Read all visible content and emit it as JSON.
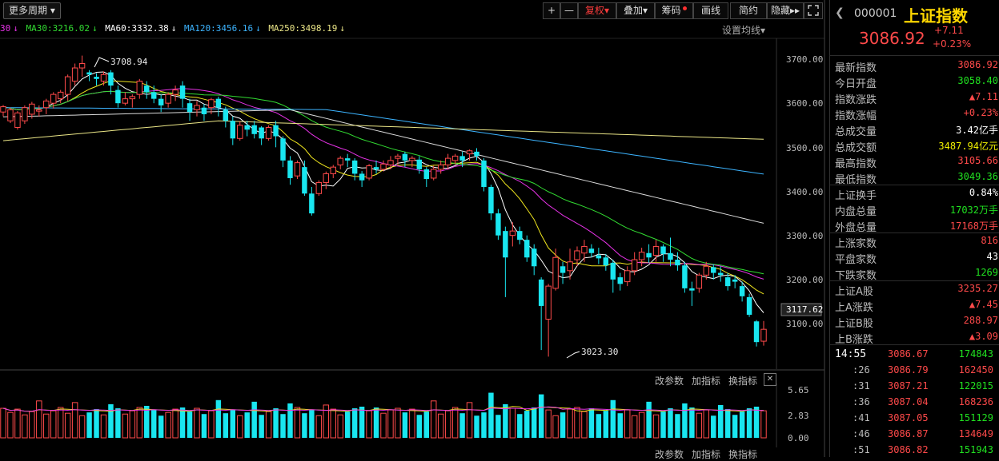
{
  "toolbar": {
    "more_period": "更多周期",
    "buttons": [
      "+",
      "—",
      "复权",
      "叠加",
      "筹码",
      "画线",
      "简约",
      "隐藏",
      "▸▸"
    ],
    "dropdown_glyph": "▾"
  },
  "ma_legend": {
    "prefix": "30",
    "ma30": "MA30:3216.02",
    "ma60": "MA60:3332.38",
    "ma120": "MA120:3456.16",
    "ma250": "MA250:3498.19",
    "arrow": "↓",
    "settings": "设置均线"
  },
  "price_axis": [
    "3700.00",
    "3600.00",
    "3500.00",
    "3400.00",
    "3300.00",
    "3200.00",
    "3100.00"
  ],
  "current_price_tag": "3117.62",
  "annotations": {
    "high": "3708.94",
    "low": "3023.30"
  },
  "volume_axis": [
    "5.65",
    "2.83",
    "0.00"
  ],
  "indicator_controls": {
    "change_params": "改参数",
    "add_indicator": "加指标",
    "switch_indicator": "换指标",
    "close": "✕"
  },
  "colors": {
    "up": "#ff4a4a",
    "down": "#19e6f0",
    "ma_white": "#ffffff",
    "ma_yellow": "#f0e61e",
    "ma_magenta": "#e632e6",
    "ma_green": "#32dc32",
    "ma_blue": "#3cb4ff",
    "ma_long": "#ebe687"
  },
  "chart_data": {
    "type": "candlestick",
    "ylim": [
      3010,
      3730
    ],
    "candles": [
      [
        3580,
        3592,
        3570,
        3596
      ],
      [
        3560,
        3585,
        3555,
        3590
      ],
      [
        3545,
        3578,
        3540,
        3582
      ],
      [
        3560,
        3590,
        3553,
        3595
      ],
      [
        3575,
        3598,
        3565,
        3603
      ],
      [
        3582,
        3585,
        3570,
        3595
      ],
      [
        3590,
        3605,
        3575,
        3610
      ],
      [
        3600,
        3620,
        3588,
        3625
      ],
      [
        3610,
        3625,
        3600,
        3630
      ],
      [
        3620,
        3660,
        3605,
        3665
      ],
      [
        3650,
        3680,
        3640,
        3690
      ],
      [
        3680,
        3690,
        3660,
        3708
      ],
      [
        3670,
        3665,
        3650,
        3675
      ],
      [
        3660,
        3655,
        3640,
        3668
      ],
      [
        3650,
        3665,
        3640,
        3672
      ],
      [
        3670,
        3640,
        3620,
        3675
      ],
      [
        3630,
        3600,
        3590,
        3640
      ],
      [
        3600,
        3610,
        3595,
        3625
      ],
      [
        3610,
        3615,
        3590,
        3620
      ],
      [
        3620,
        3650,
        3610,
        3655
      ],
      [
        3640,
        3625,
        3610,
        3650
      ],
      [
        3625,
        3610,
        3600,
        3640
      ],
      [
        3610,
        3595,
        3580,
        3620
      ],
      [
        3600,
        3620,
        3590,
        3625
      ],
      [
        3620,
        3630,
        3605,
        3640
      ],
      [
        3640,
        3610,
        3590,
        3650
      ],
      [
        3600,
        3580,
        3560,
        3610
      ],
      [
        3585,
        3595,
        3570,
        3605
      ],
      [
        3590,
        3575,
        3560,
        3598
      ],
      [
        3590,
        3608,
        3575,
        3612
      ],
      [
        3610,
        3590,
        3570,
        3615
      ],
      [
        3585,
        3560,
        3545,
        3592
      ],
      [
        3560,
        3520,
        3505,
        3570
      ],
      [
        3520,
        3550,
        3515,
        3558
      ],
      [
        3550,
        3540,
        3525,
        3560
      ],
      [
        3550,
        3530,
        3520,
        3560
      ],
      [
        3545,
        3520,
        3505,
        3548
      ],
      [
        3520,
        3545,
        3515,
        3550
      ],
      [
        3550,
        3525,
        3500,
        3560
      ],
      [
        3520,
        3470,
        3455,
        3525
      ],
      [
        3470,
        3430,
        3415,
        3480
      ],
      [
        3435,
        3465,
        3428,
        3470
      ],
      [
        3455,
        3395,
        3390,
        3470
      ],
      [
        3395,
        3350,
        3345,
        3410
      ],
      [
        3395,
        3420,
        3390,
        3425
      ],
      [
        3420,
        3440,
        3405,
        3445
      ],
      [
        3440,
        3455,
        3430,
        3460
      ],
      [
        3460,
        3475,
        3450,
        3480
      ],
      [
        3475,
        3470,
        3455,
        3485
      ],
      [
        3470,
        3440,
        3425,
        3475
      ],
      [
        3440,
        3425,
        3410,
        3446
      ],
      [
        3430,
        3458,
        3425,
        3462
      ],
      [
        3455,
        3450,
        3440,
        3470
      ],
      [
        3450,
        3462,
        3445,
        3470
      ],
      [
        3460,
        3470,
        3450,
        3480
      ],
      [
        3475,
        3480,
        3460,
        3485
      ],
      [
        3485,
        3470,
        3455,
        3490
      ],
      [
        3470,
        3475,
        3455,
        3480
      ],
      [
        3472,
        3450,
        3440,
        3480
      ],
      [
        3450,
        3428,
        3410,
        3455
      ],
      [
        3430,
        3450,
        3425,
        3458
      ],
      [
        3450,
        3460,
        3440,
        3470
      ],
      [
        3460,
        3475,
        3450,
        3485
      ],
      [
        3470,
        3480,
        3460,
        3485
      ],
      [
        3480,
        3470,
        3455,
        3490
      ],
      [
        3485,
        3492,
        3470,
        3495
      ],
      [
        3490,
        3480,
        3470,
        3498
      ],
      [
        3470,
        3410,
        3400,
        3475
      ],
      [
        3410,
        3350,
        3335,
        3415
      ],
      [
        3350,
        3300,
        3290,
        3360
      ],
      [
        3310,
        3250,
        3160,
        3320
      ],
      [
        3300,
        3310,
        3275,
        3330
      ],
      [
        3310,
        3290,
        3280,
        3320
      ],
      [
        3290,
        3250,
        3240,
        3300
      ],
      [
        3270,
        3230,
        3210,
        3280
      ],
      [
        3200,
        3140,
        3040,
        3205
      ],
      [
        3110,
        3185,
        3025,
        3190
      ],
      [
        3180,
        3250,
        3175,
        3270
      ],
      [
        3230,
        3215,
        3190,
        3240
      ],
      [
        3220,
        3240,
        3200,
        3270
      ],
      [
        3245,
        3265,
        3230,
        3275
      ],
      [
        3260,
        3275,
        3240,
        3290
      ],
      [
        3270,
        3260,
        3250,
        3280
      ],
      [
        3255,
        3248,
        3235,
        3272
      ],
      [
        3250,
        3232,
        3220,
        3258
      ],
      [
        3238,
        3200,
        3170,
        3245
      ],
      [
        3205,
        3190,
        3175,
        3215
      ],
      [
        3195,
        3220,
        3185,
        3230
      ],
      [
        3220,
        3245,
        3210,
        3262
      ],
      [
        3245,
        3262,
        3230,
        3272
      ],
      [
        3260,
        3250,
        3238,
        3280
      ],
      [
        3255,
        3275,
        3240,
        3290
      ],
      [
        3275,
        3258,
        3240,
        3280
      ],
      [
        3260,
        3245,
        3230,
        3295
      ],
      [
        3245,
        3232,
        3220,
        3262
      ],
      [
        3232,
        3180,
        3170,
        3240
      ],
      [
        3180,
        3175,
        3140,
        3195
      ],
      [
        3180,
        3210,
        3170,
        3215
      ],
      [
        3210,
        3230,
        3200,
        3240
      ],
      [
        3228,
        3215,
        3200,
        3235
      ],
      [
        3215,
        3210,
        3195,
        3230
      ],
      [
        3205,
        3185,
        3175,
        3215
      ],
      [
        3200,
        3195,
        3180,
        3210
      ],
      [
        3185,
        3162,
        3150,
        3195
      ],
      [
        3160,
        3120,
        3115,
        3168
      ],
      [
        3105,
        3058,
        3048,
        3108
      ],
      [
        3060,
        3087,
        3050,
        3106
      ]
    ],
    "volume_ylim": [
      0,
      5.65
    ]
  },
  "side": {
    "code": "000001",
    "name": "上证指数",
    "price": "3086.92",
    "change": "+7.11",
    "change_pct": "+0.23%",
    "rows": [
      {
        "label": "最新指数",
        "value": "3086.92",
        "color": "red"
      },
      {
        "label": "今日开盘",
        "value": "3058.40",
        "color": "green"
      },
      {
        "label": "指数涨跌",
        "value": "▲7.11",
        "color": "red"
      },
      {
        "label": "指数涨幅",
        "value": "+0.23%",
        "color": "red"
      },
      {
        "label": "总成交量",
        "value": "3.42亿手",
        "color": "white"
      },
      {
        "label": "总成交额",
        "value": "3487.94亿元",
        "color": "yellow"
      },
      {
        "label": "最高指数",
        "value": "3105.66",
        "color": "red"
      },
      {
        "label": "最低指数",
        "value": "3049.36",
        "color": "green"
      },
      {
        "label": "上证换手",
        "value": "0.84%",
        "color": "white"
      },
      {
        "label": "内盘总量",
        "value": "17032万手",
        "color": "green"
      },
      {
        "label": "外盘总量",
        "value": "17168万手",
        "color": "red"
      },
      {
        "label": "上涨家数",
        "value": "816",
        "color": "red"
      },
      {
        "label": "平盘家数",
        "value": "43",
        "color": "white"
      },
      {
        "label": "下跌家数",
        "value": "1269",
        "color": "green"
      },
      {
        "label": "上证A股",
        "value": "3235.27",
        "color": "red"
      },
      {
        "label": "上A涨跌",
        "value": "▲7.45",
        "color": "red"
      },
      {
        "label": "上证B股",
        "value": "288.97",
        "color": "red"
      },
      {
        "label": "上B涨跌",
        "value": "▲3.09",
        "color": "red"
      }
    ],
    "ticks": [
      {
        "time": "14:55",
        "price": "3086.67",
        "vol": "174843"
      },
      {
        "time": ":26",
        "price": "3086.79",
        "vol": "162450"
      },
      {
        "time": ":31",
        "price": "3087.21",
        "vol": "122015"
      },
      {
        "time": ":36",
        "price": "3087.04",
        "vol": "168236"
      },
      {
        "time": ":41",
        "price": "3087.05",
        "vol": "151129"
      },
      {
        "time": ":46",
        "price": "3086.87",
        "vol": "134649"
      },
      {
        "time": ":51",
        "price": "3086.82",
        "vol": "151943"
      }
    ]
  }
}
